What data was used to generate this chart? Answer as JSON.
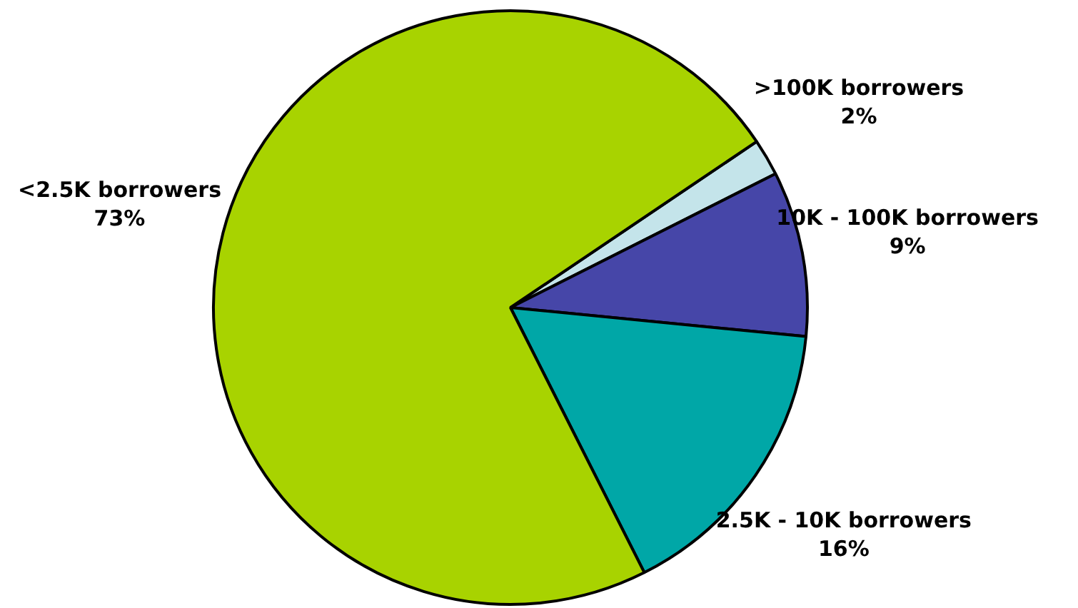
{
  "chart_data": {
    "type": "pie",
    "categories": [
      ">100K borrowers",
      "10K - 100K borrowers",
      "2.5K - 10K borrowers",
      "<2.5K borrowers"
    ],
    "values": [
      2,
      9,
      16,
      73
    ],
    "value_labels": [
      "2%",
      "9%",
      "16%",
      "73%"
    ],
    "colors": [
      "#c4e4ea",
      "#4646a8",
      "#00a7a7",
      "#a8d300"
    ]
  }
}
